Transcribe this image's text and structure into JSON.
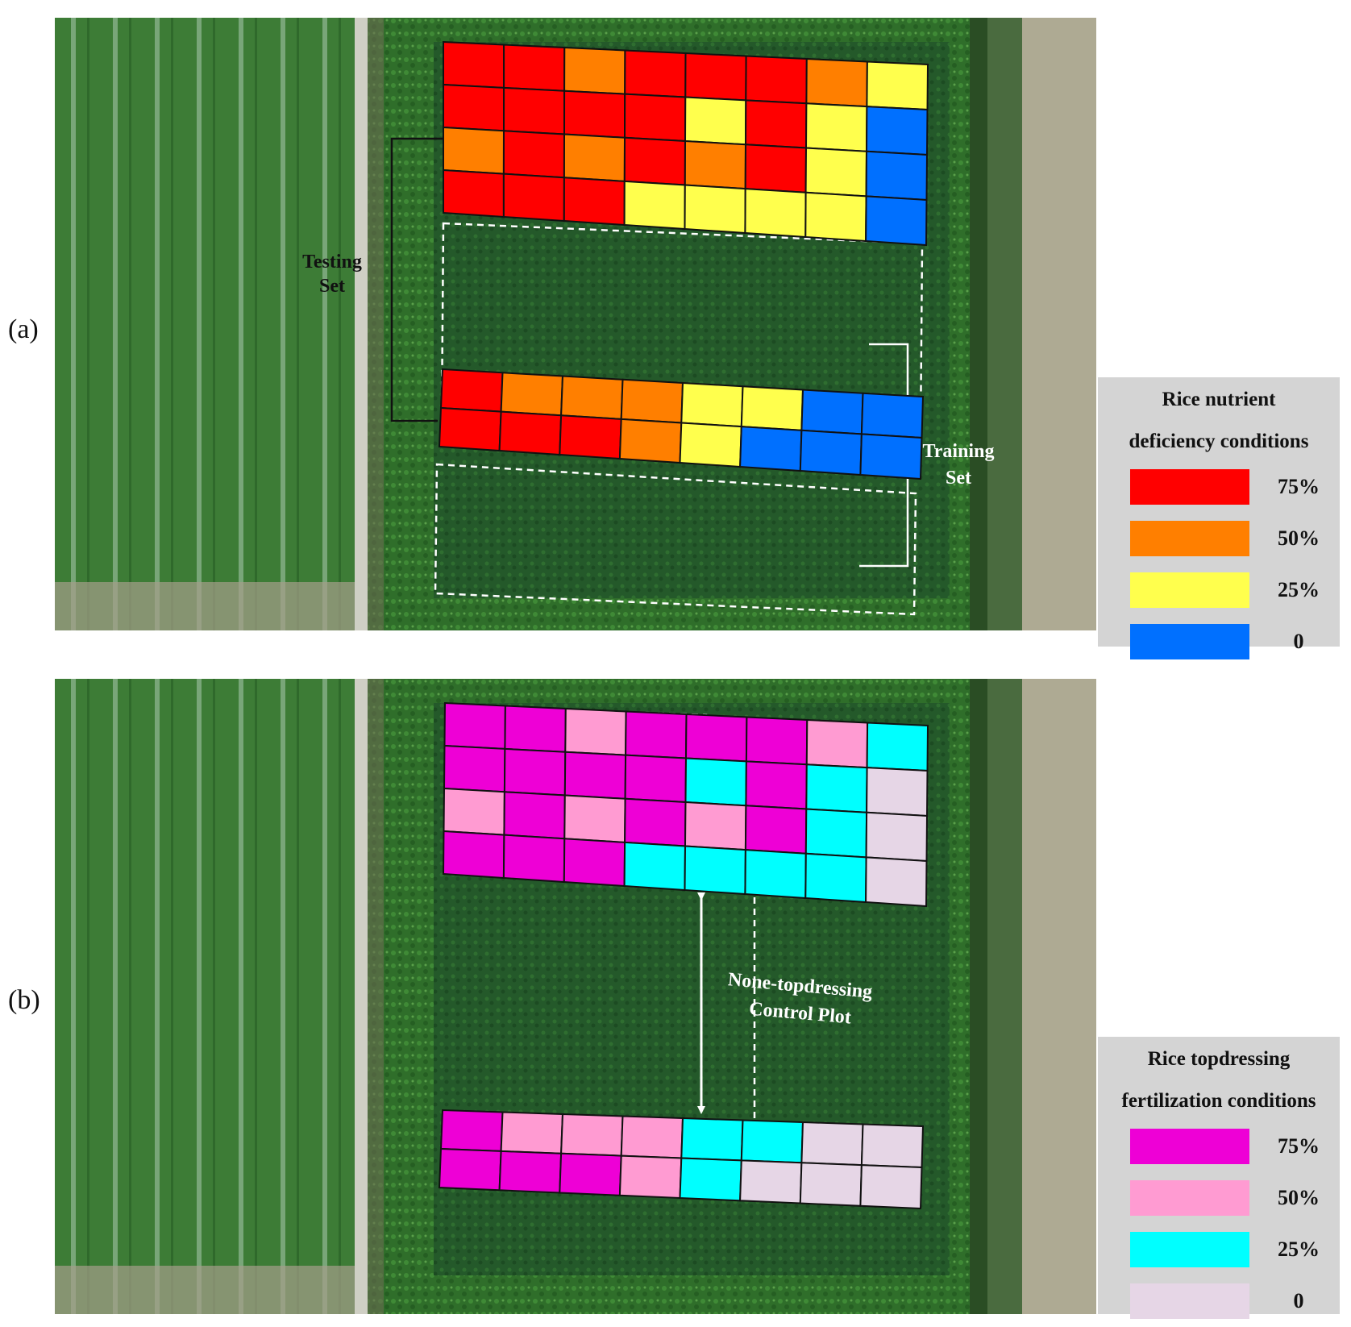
{
  "panels": [
    {
      "label": "(a)",
      "legend_title_line1": "Rice nutrient",
      "legend_title_line2": "deficiency conditions",
      "legend": [
        {
          "value": "75%",
          "color": "#ff0000"
        },
        {
          "value": "50%",
          "color": "#ff7f00"
        },
        {
          "value": "25%",
          "color": "#ffff4d"
        },
        {
          "value": "0",
          "color": "#0070ff"
        }
      ],
      "annotations": {
        "testing_line1": "Testing",
        "testing_line2": "Set",
        "training_line1": "Training",
        "training_line2": "Set"
      },
      "upper_grid": [
        [
          "75%",
          "75%",
          "50%",
          "75%",
          "75%",
          "75%",
          "50%",
          "25%"
        ],
        [
          "75%",
          "75%",
          "75%",
          "75%",
          "25%",
          "75%",
          "25%",
          "0"
        ],
        [
          "50%",
          "75%",
          "50%",
          "75%",
          "50%",
          "75%",
          "25%",
          "0"
        ],
        [
          "75%",
          "75%",
          "75%",
          "25%",
          "25%",
          "25%",
          "25%",
          "0"
        ]
      ],
      "lower_grid": [
        [
          "75%",
          "50%",
          "50%",
          "50%",
          "25%",
          "25%",
          "0",
          "0"
        ],
        [
          "75%",
          "75%",
          "75%",
          "50%",
          "25%",
          "0",
          "0",
          "0"
        ]
      ]
    },
    {
      "label": "(b)",
      "legend_title_line1": "Rice topdressing",
      "legend_title_line2": "fertilization conditions",
      "legend": [
        {
          "value": "75%",
          "color": "#ee00d6"
        },
        {
          "value": "50%",
          "color": "#ff9bd2"
        },
        {
          "value": "25%",
          "color": "#00ffff"
        },
        {
          "value": "0",
          "color": "#e6d6e6"
        }
      ],
      "annotations": {
        "control_line1": "None-topdressing",
        "control_line2": "Control Plot"
      },
      "upper_grid": [
        [
          "75%",
          "75%",
          "50%",
          "75%",
          "75%",
          "75%",
          "50%",
          "25%"
        ],
        [
          "75%",
          "75%",
          "75%",
          "75%",
          "25%",
          "75%",
          "25%",
          "0"
        ],
        [
          "50%",
          "75%",
          "50%",
          "75%",
          "50%",
          "75%",
          "25%",
          "0"
        ],
        [
          "75%",
          "75%",
          "75%",
          "25%",
          "25%",
          "25%",
          "25%",
          "0"
        ]
      ],
      "lower_grid": [
        [
          "75%",
          "50%",
          "50%",
          "50%",
          "25%",
          "25%",
          "0",
          "0"
        ],
        [
          "75%",
          "75%",
          "75%",
          "50%",
          "25%",
          "0",
          "0",
          "0"
        ]
      ]
    }
  ]
}
